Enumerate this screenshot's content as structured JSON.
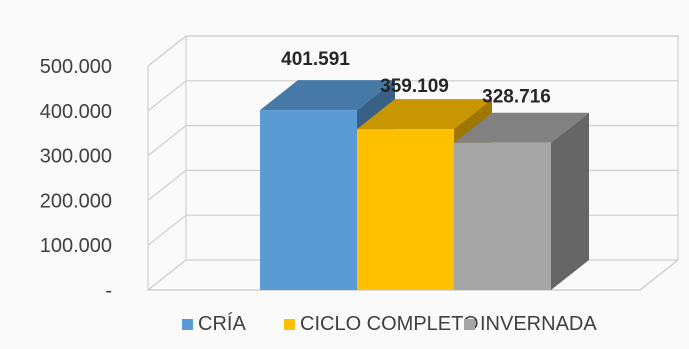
{
  "chart_data": {
    "type": "bar",
    "categories": [
      "CRÍA",
      "CICLO COMPLETO",
      "INVERNADA"
    ],
    "values": [
      401591,
      359109,
      328716
    ],
    "value_labels": [
      "401.591",
      "359.109",
      "328.716"
    ],
    "colors": [
      "#5b9bd5",
      "#ffc000",
      "#a5a5a5"
    ],
    "ylim": [
      0,
      500000
    ],
    "yticks": [
      0,
      100000,
      200000,
      300000,
      400000,
      500000
    ],
    "ytick_labels": [
      "-",
      "100.000",
      "200.000",
      "300.000",
      "400.000",
      "500.000"
    ],
    "grid": true,
    "legend": {
      "position": "bottom",
      "entries": [
        "CRÍA",
        "CICLO COMPLETO",
        "INVERNADA"
      ]
    },
    "style": "3d-clustered-column"
  }
}
